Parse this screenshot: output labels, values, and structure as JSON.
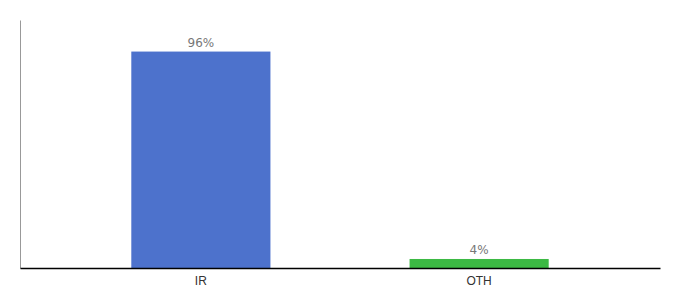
{
  "chart_data": {
    "type": "bar",
    "categories": [
      "IR",
      "OTH"
    ],
    "values": [
      96,
      4
    ],
    "value_labels": [
      "96%",
      "4%"
    ],
    "colors": [
      "#4d72cc",
      "#3cb944"
    ],
    "ylim": [
      0,
      110
    ],
    "tick_labels": "x"
  }
}
